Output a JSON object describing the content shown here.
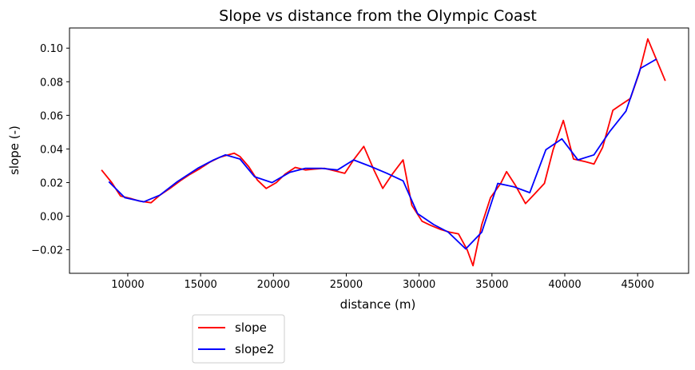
{
  "chart_data": {
    "type": "line",
    "title": "Slope vs distance from the Olympic Coast",
    "xlabel": "distance (m)",
    "ylabel": "slope (-)",
    "xlim": [
      6000,
      48500
    ],
    "ylim": [
      -0.034,
      0.112
    ],
    "xticks": [
      10000,
      15000,
      20000,
      25000,
      30000,
      35000,
      40000,
      45000
    ],
    "yticks": [
      -0.02,
      0.0,
      0.02,
      0.04,
      0.06,
      0.08,
      0.1
    ],
    "ytick_labels": [
      "−0.02",
      "0.00",
      "0.02",
      "0.04",
      "0.06",
      "0.08",
      "0.10"
    ],
    "grid": false,
    "legend_position": "below the plot, left",
    "series": [
      {
        "name": "slope",
        "color": "#ff0000",
        "x": [
          8200,
          8900,
          9500,
          10200,
          10800,
          11600,
          12200,
          12900,
          13600,
          14200,
          14900,
          15600,
          16300,
          16900,
          17300,
          17700,
          18300,
          18900,
          19500,
          20200,
          20800,
          21500,
          22200,
          22800,
          23500,
          24200,
          24900,
          25500,
          26200,
          26900,
          27500,
          28200,
          28900,
          29500,
          30200,
          30800,
          31500,
          32100,
          32700,
          33300,
          33700,
          34300,
          34900,
          35600,
          36000,
          36600,
          37300,
          37900,
          38600,
          39200,
          39900,
          40600,
          41400,
          42000,
          42600,
          43300,
          43800,
          44500,
          45100,
          45700,
          46300,
          46900
        ],
        "y": [
          0.0275,
          0.02,
          0.012,
          0.0105,
          0.009,
          0.008,
          0.0125,
          0.0165,
          0.021,
          0.0245,
          0.028,
          0.032,
          0.035,
          0.0365,
          0.0375,
          0.0355,
          0.0295,
          0.0215,
          0.0165,
          0.02,
          0.025,
          0.029,
          0.0275,
          0.028,
          0.0285,
          0.027,
          0.0255,
          0.0335,
          0.0415,
          0.0275,
          0.0165,
          0.0255,
          0.0335,
          0.0065,
          -0.003,
          -0.0055,
          -0.008,
          -0.0095,
          -0.0105,
          -0.02,
          -0.0295,
          -0.005,
          0.011,
          0.0195,
          0.0265,
          0.0185,
          0.0075,
          0.013,
          0.0195,
          0.0395,
          0.057,
          0.034,
          0.0325,
          0.031,
          0.041,
          0.063,
          0.066,
          0.07,
          0.085,
          0.1055,
          0.093,
          0.0805
        ]
      },
      {
        "name": "slope2",
        "color": "#0000ff",
        "x": [
          8700,
          9800,
          11100,
          12200,
          13400,
          14800,
          15900,
          16700,
          17700,
          18700,
          19900,
          21100,
          22200,
          23300,
          24400,
          25500,
          26700,
          27800,
          28900,
          29900,
          31000,
          32000,
          33200,
          34300,
          35400,
          36500,
          37600,
          38700,
          39800,
          40900,
          42000,
          43100,
          44200,
          45200,
          46300
        ],
        "y": [
          0.0205,
          0.011,
          0.0085,
          0.0125,
          0.0205,
          0.0285,
          0.0335,
          0.0365,
          0.034,
          0.0235,
          0.02,
          0.026,
          0.0285,
          0.0285,
          0.0275,
          0.0335,
          0.0295,
          0.0255,
          0.021,
          0.0015,
          -0.005,
          -0.0095,
          -0.0195,
          -0.0095,
          0.0195,
          0.0175,
          0.014,
          0.0395,
          0.046,
          0.0335,
          0.0365,
          0.0505,
          0.0625,
          0.088,
          0.0935
        ]
      }
    ]
  }
}
